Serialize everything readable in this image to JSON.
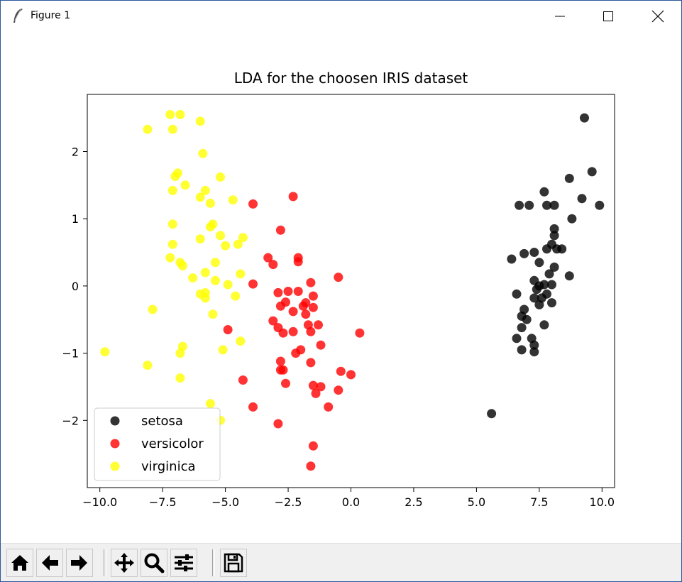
{
  "window": {
    "title": "Figure 1",
    "icon": "feather-icon",
    "controls": {
      "minimize": "minimize-icon",
      "maximize": "maximize-icon",
      "close": "close-icon"
    }
  },
  "toolbar": {
    "buttons": [
      {
        "name": "home-button",
        "icon": "home-icon"
      },
      {
        "name": "back-button",
        "icon": "arrow-left-icon"
      },
      {
        "name": "forward-button",
        "icon": "arrow-right-icon"
      },
      {
        "name": "pan-button",
        "icon": "move-icon"
      },
      {
        "name": "zoom-button",
        "icon": "magnifier-icon"
      },
      {
        "name": "configure-subplots-button",
        "icon": "sliders-icon"
      },
      {
        "name": "save-button",
        "icon": "floppy-disk-icon"
      }
    ]
  },
  "chart_data": {
    "type": "scatter",
    "title": "LDA for the choosen IRIS dataset",
    "xlabel": "",
    "ylabel": "",
    "xlim": [
      -10.5,
      10.5
    ],
    "ylim": [
      -3.0,
      2.85
    ],
    "x_ticks": [
      -10.0,
      -7.5,
      -5.0,
      -2.5,
      0.0,
      2.5,
      5.0,
      7.5,
      10.0
    ],
    "x_tick_labels": [
      "−10.0",
      "−7.5",
      "−5.0",
      "−2.5",
      "0.0",
      "2.5",
      "5.0",
      "7.5",
      "10.0"
    ],
    "y_ticks": [
      -2,
      -1,
      0,
      1,
      2
    ],
    "y_tick_labels": [
      "−2",
      "−1",
      "0",
      "1",
      "2"
    ],
    "grid": false,
    "legend_position": "lower-left",
    "series": [
      {
        "name": "setosa",
        "color": "#000000",
        "points": [
          [
            9.3,
            2.5
          ],
          [
            9.6,
            1.7
          ],
          [
            8.7,
            1.6
          ],
          [
            9.9,
            1.2
          ],
          [
            9.2,
            1.3
          ],
          [
            7.7,
            1.4
          ],
          [
            6.7,
            1.2
          ],
          [
            7.1,
            1.2
          ],
          [
            7.8,
            1.2
          ],
          [
            8.1,
            1.2
          ],
          [
            8.8,
            1.0
          ],
          [
            8.1,
            0.85
          ],
          [
            8.1,
            0.75
          ],
          [
            8.0,
            0.62
          ],
          [
            8.2,
            0.55
          ],
          [
            7.8,
            0.55
          ],
          [
            8.4,
            0.55
          ],
          [
            7.3,
            0.5
          ],
          [
            6.9,
            0.48
          ],
          [
            6.4,
            0.4
          ],
          [
            7.5,
            0.35
          ],
          [
            8.1,
            0.28
          ],
          [
            7.9,
            0.18
          ],
          [
            8.7,
            0.15
          ],
          [
            7.3,
            0.08
          ],
          [
            7.5,
            0.0
          ],
          [
            7.7,
            0.02
          ],
          [
            8.0,
            0.02
          ],
          [
            7.4,
            -0.05
          ],
          [
            7.8,
            -0.12
          ],
          [
            6.6,
            -0.12
          ],
          [
            7.3,
            -0.18
          ],
          [
            7.6,
            -0.18
          ],
          [
            8.0,
            -0.25
          ],
          [
            7.5,
            -0.28
          ],
          [
            6.9,
            -0.35
          ],
          [
            6.8,
            -0.45
          ],
          [
            7.0,
            -0.5
          ],
          [
            7.7,
            -0.58
          ],
          [
            6.8,
            -0.62
          ],
          [
            6.6,
            -0.78
          ],
          [
            7.2,
            -0.78
          ],
          [
            7.3,
            -0.88
          ],
          [
            6.8,
            -0.95
          ],
          [
            7.3,
            -0.98
          ],
          [
            5.6,
            -1.9
          ]
        ]
      },
      {
        "name": "versicolor",
        "color": "#ff0000",
        "points": [
          [
            -2.3,
            1.33
          ],
          [
            -3.9,
            1.22
          ],
          [
            -2.8,
            0.83
          ],
          [
            -3.3,
            0.42
          ],
          [
            -3.1,
            0.32
          ],
          [
            -2.1,
            0.42
          ],
          [
            -2.1,
            0.36
          ],
          [
            -0.5,
            0.13
          ],
          [
            -3.9,
            0.03
          ],
          [
            -1.6,
            0.05
          ],
          [
            -2.9,
            -0.1
          ],
          [
            -2.5,
            -0.08
          ],
          [
            -2.1,
            -0.08
          ],
          [
            -1.5,
            -0.15
          ],
          [
            -2.6,
            -0.24
          ],
          [
            -1.8,
            -0.25
          ],
          [
            -1.9,
            -0.3
          ],
          [
            -2.8,
            -0.3
          ],
          [
            -2.3,
            -0.38
          ],
          [
            -1.5,
            -0.32
          ],
          [
            -1.8,
            -0.42
          ],
          [
            -3.1,
            -0.52
          ],
          [
            -1.7,
            -0.58
          ],
          [
            -1.3,
            -0.58
          ],
          [
            -2.9,
            -0.62
          ],
          [
            -1.6,
            -0.68
          ],
          [
            -2.3,
            -0.68
          ],
          [
            -2.7,
            -0.7
          ],
          [
            -4.9,
            -0.65
          ],
          [
            0.35,
            -0.7
          ],
          [
            -1.2,
            -0.88
          ],
          [
            -2.0,
            -0.95
          ],
          [
            -2.2,
            -1.0
          ],
          [
            -2.8,
            -1.12
          ],
          [
            -1.6,
            -1.14
          ],
          [
            -2.8,
            -1.25
          ],
          [
            -2.7,
            -1.25
          ],
          [
            -0.4,
            -1.27
          ],
          [
            0.0,
            -1.32
          ],
          [
            -4.3,
            -1.4
          ],
          [
            -2.6,
            -1.45
          ],
          [
            -1.5,
            -1.48
          ],
          [
            -1.2,
            -1.5
          ],
          [
            -0.5,
            -1.55
          ],
          [
            -1.4,
            -1.6
          ],
          [
            -3.9,
            -1.8
          ],
          [
            -0.9,
            -1.8
          ],
          [
            -2.9,
            -2.05
          ],
          [
            -1.5,
            -2.38
          ],
          [
            -1.6,
            -2.68
          ]
        ]
      },
      {
        "name": "virginica",
        "color": "#ffff00",
        "points": [
          [
            -7.2,
            2.55
          ],
          [
            -6.8,
            2.55
          ],
          [
            -6.0,
            2.45
          ],
          [
            -8.1,
            2.33
          ],
          [
            -7.1,
            2.33
          ],
          [
            -5.9,
            1.97
          ],
          [
            -6.9,
            1.68
          ],
          [
            -7.0,
            1.63
          ],
          [
            -5.2,
            1.62
          ],
          [
            -6.6,
            1.5
          ],
          [
            -7.1,
            1.42
          ],
          [
            -5.8,
            1.42
          ],
          [
            -6.0,
            1.32
          ],
          [
            -4.7,
            1.28
          ],
          [
            -5.6,
            1.23
          ],
          [
            -7.1,
            0.92
          ],
          [
            -5.5,
            0.92
          ],
          [
            -5.6,
            0.88
          ],
          [
            -5.2,
            0.75
          ],
          [
            -6.0,
            0.7
          ],
          [
            -4.3,
            0.72
          ],
          [
            -7.1,
            0.62
          ],
          [
            -4.5,
            0.62
          ],
          [
            -5.0,
            0.6
          ],
          [
            -7.2,
            0.42
          ],
          [
            -6.8,
            0.35
          ],
          [
            -6.7,
            0.3
          ],
          [
            -5.4,
            0.35
          ],
          [
            -5.8,
            0.2
          ],
          [
            -4.4,
            0.18
          ],
          [
            -6.3,
            0.12
          ],
          [
            -5.4,
            0.08
          ],
          [
            -4.9,
            0.02
          ],
          [
            -5.8,
            -0.1
          ],
          [
            -6.0,
            -0.12
          ],
          [
            -4.6,
            -0.15
          ],
          [
            -5.8,
            -0.18
          ],
          [
            -7.9,
            -0.35
          ],
          [
            -5.5,
            -0.42
          ],
          [
            -4.4,
            -0.82
          ],
          [
            -6.7,
            -0.9
          ],
          [
            -5.1,
            -0.95
          ],
          [
            -9.8,
            -0.98
          ],
          [
            -6.8,
            -1.0
          ],
          [
            -8.1,
            -1.18
          ],
          [
            -6.8,
            -1.37
          ],
          [
            -5.6,
            -1.75
          ],
          [
            -5.2,
            -2.0
          ]
        ]
      }
    ]
  }
}
